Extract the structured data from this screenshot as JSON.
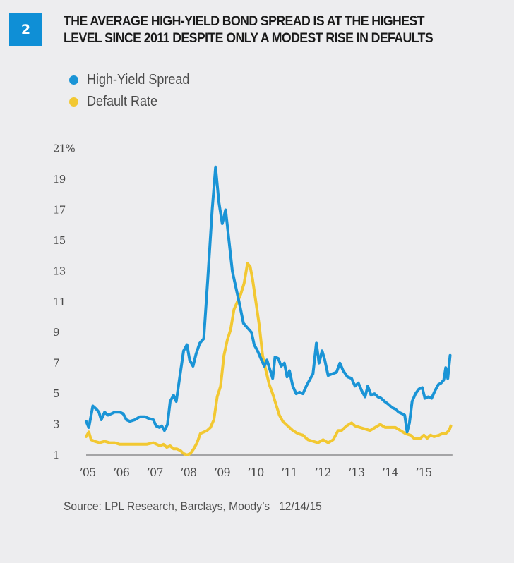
{
  "figure": {
    "number": "2",
    "title_line1": "THE AVERAGE HIGH-YIELD BOND SPREAD IS AT THE HIGHEST",
    "title_line2": "LEVEL SINCE 2011 DESPITE ONLY A MODEST RISE IN DEFAULTS",
    "badge_color": "#0f8fd6",
    "source": "Source: LPL Research, Barclays, Moody’s",
    "date": "12/14/15"
  },
  "chart_data": {
    "type": "line",
    "title": "The Average High-Yield Bond Spread Is at the Highest Level Since 2011 Despite Only a Modest Rise in Defaults",
    "xlabel": "",
    "ylabel": "",
    "xlim": [
      2005,
      2016
    ],
    "ylim": [
      1,
      21
    ],
    "x_ticks": [
      2005,
      2006,
      2007,
      2008,
      2009,
      2010,
      2011,
      2012,
      2013,
      2014,
      2015
    ],
    "x_tick_labels": [
      "’05",
      "’06",
      "’07",
      "’08",
      "’09",
      "’10",
      "’11",
      "’12",
      "’13",
      "’14",
      "’15"
    ],
    "y_ticks": [
      1,
      3,
      5,
      7,
      9,
      11,
      13,
      15,
      17,
      19,
      21
    ],
    "y_tick_labels": [
      "1",
      "3",
      "5",
      "7",
      "9",
      "11",
      "13",
      "15",
      "17",
      "19",
      "21%"
    ],
    "grid": false,
    "legend_position": "top-left",
    "series": [
      {
        "name": "High-Yield Spread",
        "color": "#1a94d6",
        "x": [
          2005.0,
          2005.08,
          2005.2,
          2005.3,
          2005.38,
          2005.45,
          2005.55,
          2005.65,
          2005.75,
          2005.85,
          2006.0,
          2006.1,
          2006.2,
          2006.3,
          2006.45,
          2006.6,
          2006.75,
          2006.85,
          2007.0,
          2007.08,
          2007.18,
          2007.25,
          2007.33,
          2007.42,
          2007.5,
          2007.6,
          2007.68,
          2007.78,
          2007.9,
          2008.0,
          2008.08,
          2008.18,
          2008.27,
          2008.38,
          2008.5,
          2008.62,
          2008.75,
          2008.85,
          2008.95,
          2009.05,
          2009.15,
          2009.25,
          2009.35,
          2009.45,
          2009.55,
          2009.68,
          2009.8,
          2009.92,
          2010.0,
          2010.1,
          2010.2,
          2010.3,
          2010.38,
          2010.48,
          2010.55,
          2010.62,
          2010.72,
          2010.8,
          2010.9,
          2010.98,
          2011.05,
          2011.15,
          2011.25,
          2011.35,
          2011.45,
          2011.55,
          2011.65,
          2011.75,
          2011.85,
          2011.93,
          2012.02,
          2012.1,
          2012.2,
          2012.32,
          2012.45,
          2012.55,
          2012.65,
          2012.78,
          2012.9,
          2013.0,
          2013.1,
          2013.2,
          2013.3,
          2013.38,
          2013.48,
          2013.58,
          2013.68,
          2013.78,
          2013.88,
          2014.0,
          2014.1,
          2014.2,
          2014.3,
          2014.4,
          2014.48,
          2014.55,
          2014.62,
          2014.7,
          2014.8,
          2014.9,
          2015.0,
          2015.08,
          2015.18,
          2015.28,
          2015.38,
          2015.48,
          2015.56,
          2015.64,
          2015.7,
          2015.76,
          2015.83
        ],
        "values": [
          3.2,
          2.8,
          4.2,
          4.0,
          3.8,
          3.3,
          3.8,
          3.6,
          3.7,
          3.8,
          3.8,
          3.7,
          3.3,
          3.2,
          3.3,
          3.5,
          3.5,
          3.4,
          3.3,
          2.9,
          2.8,
          2.9,
          2.6,
          3.0,
          4.5,
          4.9,
          4.5,
          6.0,
          7.8,
          8.2,
          7.2,
          6.8,
          7.6,
          8.3,
          8.6,
          12.5,
          17.0,
          19.8,
          17.5,
          16.1,
          17.0,
          15.0,
          13.0,
          12.0,
          11.0,
          9.6,
          9.3,
          9.0,
          8.2,
          7.8,
          7.3,
          6.8,
          7.2,
          6.5,
          6.0,
          7.4,
          7.3,
          6.8,
          7.0,
          6.1,
          6.5,
          5.5,
          5.0,
          5.1,
          5.0,
          5.5,
          5.9,
          6.3,
          8.3,
          7.0,
          7.8,
          7.2,
          6.2,
          6.3,
          6.4,
          7.0,
          6.5,
          6.1,
          6.0,
          5.5,
          5.7,
          5.2,
          4.8,
          5.5,
          4.9,
          5.0,
          4.8,
          4.7,
          4.5,
          4.3,
          4.1,
          4.0,
          3.8,
          3.7,
          3.6,
          2.5,
          3.1,
          4.5,
          5.0,
          5.3,
          5.4,
          4.7,
          4.8,
          4.7,
          5.2,
          5.6,
          5.7,
          5.9,
          6.7,
          6.0,
          7.5
        ]
      },
      {
        "name": "Default Rate",
        "color": "#f2c832",
        "x": [
          2005.0,
          2005.08,
          2005.15,
          2005.25,
          2005.4,
          2005.55,
          2005.7,
          2005.85,
          2006.0,
          2006.2,
          2006.4,
          2006.6,
          2006.8,
          2007.0,
          2007.1,
          2007.2,
          2007.3,
          2007.4,
          2007.5,
          2007.6,
          2007.7,
          2007.8,
          2007.9,
          2008.0,
          2008.1,
          2008.2,
          2008.3,
          2008.4,
          2008.5,
          2008.6,
          2008.7,
          2008.8,
          2008.9,
          2009.0,
          2009.1,
          2009.2,
          2009.3,
          2009.4,
          2009.5,
          2009.6,
          2009.7,
          2009.8,
          2009.88,
          2009.95,
          2010.05,
          2010.15,
          2010.25,
          2010.35,
          2010.45,
          2010.55,
          2010.65,
          2010.75,
          2010.85,
          2011.0,
          2011.15,
          2011.3,
          2011.45,
          2011.6,
          2011.75,
          2011.9,
          2012.05,
          2012.2,
          2012.35,
          2012.5,
          2012.6,
          2012.75,
          2012.9,
          2013.0,
          2013.15,
          2013.3,
          2013.45,
          2013.6,
          2013.75,
          2013.9,
          2014.05,
          2014.2,
          2014.35,
          2014.5,
          2014.65,
          2014.75,
          2014.85,
          2014.95,
          2015.05,
          2015.15,
          2015.25,
          2015.35,
          2015.5,
          2015.6,
          2015.7,
          2015.8,
          2015.85
        ],
        "values": [
          2.2,
          2.5,
          2.0,
          1.9,
          1.8,
          1.9,
          1.8,
          1.8,
          1.7,
          1.7,
          1.7,
          1.7,
          1.7,
          1.8,
          1.7,
          1.6,
          1.7,
          1.5,
          1.6,
          1.4,
          1.4,
          1.3,
          1.1,
          1.0,
          1.1,
          1.4,
          1.8,
          2.4,
          2.5,
          2.6,
          2.8,
          3.3,
          4.8,
          5.5,
          7.5,
          8.5,
          9.2,
          10.5,
          11.0,
          11.5,
          12.2,
          13.5,
          13.3,
          12.5,
          11.0,
          9.5,
          7.5,
          6.5,
          5.6,
          5.0,
          4.3,
          3.6,
          3.2,
          2.9,
          2.6,
          2.4,
          2.3,
          2.0,
          1.9,
          1.8,
          2.0,
          1.8,
          2.0,
          2.6,
          2.6,
          2.9,
          3.1,
          2.9,
          2.8,
          2.7,
          2.6,
          2.8,
          3.0,
          2.8,
          2.8,
          2.8,
          2.6,
          2.4,
          2.3,
          2.1,
          2.1,
          2.1,
          2.3,
          2.1,
          2.3,
          2.2,
          2.3,
          2.4,
          2.4,
          2.6,
          2.9
        ]
      }
    ]
  }
}
